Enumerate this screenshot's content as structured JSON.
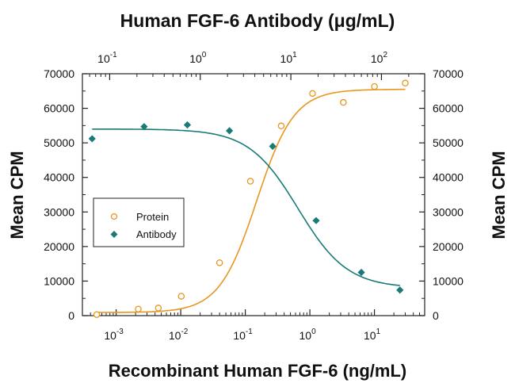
{
  "colors": {
    "protein": "#E8961E",
    "antibody": "#1A7A78",
    "axis": "#222222"
  },
  "chart_data": {
    "type": "scatter",
    "title": "Human FGF-6 Antibody (μg/mL)",
    "xlabel": "Recombinant Human FGF-6 (ng/mL)",
    "ylabel": "Mean CPM",
    "ylabel_right": "Mean CPM",
    "x_scale": "log",
    "xlim": [
      0.0003,
      60
    ],
    "x_ticks": [
      {
        "base": "10",
        "exp": "-3",
        "value": 0.001
      },
      {
        "base": "10",
        "exp": "-2",
        "value": 0.01
      },
      {
        "base": "10",
        "exp": "-1",
        "value": 0.1
      },
      {
        "base": "10",
        "exp": "0",
        "value": 1
      },
      {
        "base": "10",
        "exp": "1",
        "value": 10
      }
    ],
    "top_axis": {
      "scale": "log",
      "xlim": [
        0.05,
        300
      ],
      "ticks": [
        {
          "base": "10",
          "exp": "-1",
          "value": 0.1
        },
        {
          "base": "10",
          "exp": "0",
          "value": 1
        },
        {
          "base": "10",
          "exp": "1",
          "value": 10
        },
        {
          "base": "10",
          "exp": "2",
          "value": 100
        }
      ]
    },
    "ylim": [
      0,
      70000
    ],
    "y_ticks": [
      "0",
      "10000",
      "20000",
      "30000",
      "40000",
      "50000",
      "60000",
      "70000"
    ],
    "y_tick_values": [
      0,
      10000,
      20000,
      30000,
      40000,
      50000,
      60000,
      70000
    ],
    "legend_position": "left",
    "series": [
      {
        "name": "Protein",
        "marker": "open-circle",
        "axis": "bottom",
        "x": [
          0.0005,
          0.0022,
          0.0045,
          0.0102,
          0.04,
          0.12,
          0.36,
          1.1,
          3.3,
          10,
          30
        ],
        "y": [
          300,
          1900,
          2200,
          5600,
          15300,
          38900,
          54900,
          64300,
          61700,
          66300,
          67300
        ],
        "fit": {
          "bottom": 900,
          "top": 65500,
          "ec50": 0.15,
          "hill": 1.5
        }
      },
      {
        "name": "Antibody",
        "marker": "filled-diamond",
        "axis": "top",
        "x": [
          0.064,
          0.24,
          0.72,
          2.1,
          6.3,
          19,
          60,
          160
        ],
        "y": [
          51200,
          54700,
          55200,
          53500,
          49000,
          27500,
          12500,
          7400
        ],
        "fit": {
          "bottom": 8000,
          "top": 54000,
          "ec50": 12,
          "hill": 1.6
        }
      }
    ]
  }
}
